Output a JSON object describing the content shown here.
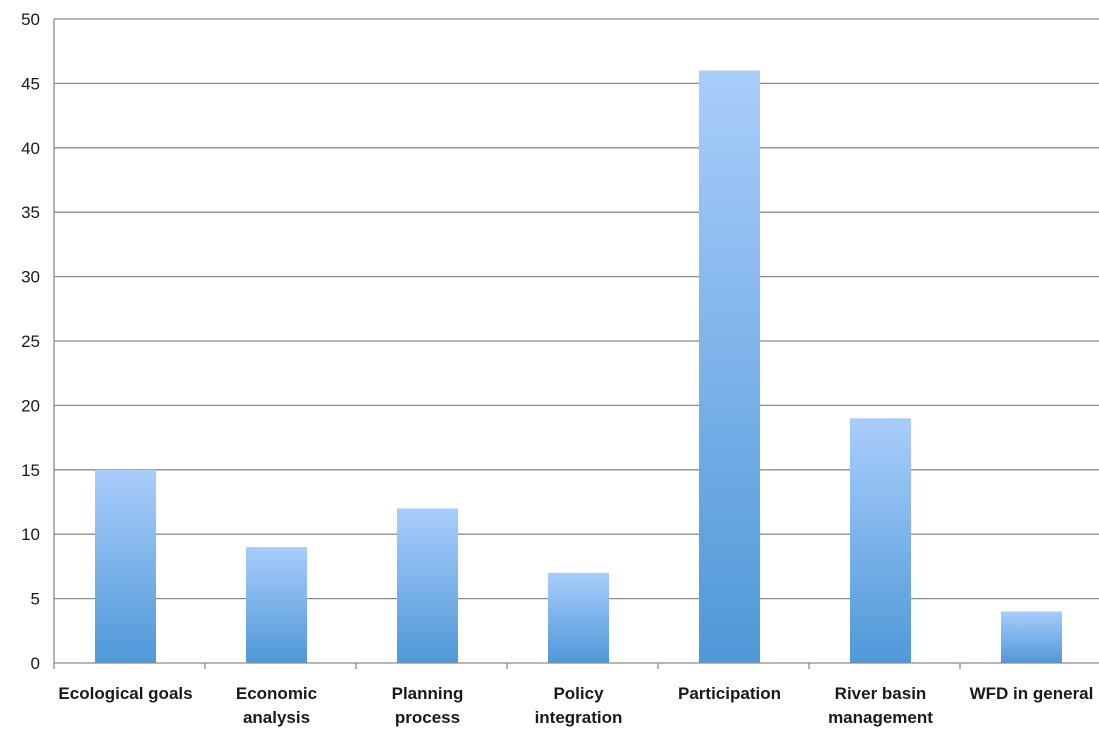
{
  "chart_data": {
    "type": "bar",
    "categories": [
      [
        "Ecological goals"
      ],
      [
        "Economic",
        "analysis"
      ],
      [
        "Planning",
        "process"
      ],
      [
        "Policy",
        "integration"
      ],
      [
        "Participation"
      ],
      [
        "River basin",
        "management"
      ],
      [
        "WFD in general"
      ]
    ],
    "values": [
      15,
      9,
      12,
      7,
      46,
      19,
      4
    ],
    "title": "",
    "xlabel": "",
    "ylabel": "",
    "ylim": [
      0,
      50
    ],
    "yticks": [
      "0",
      "5",
      "10",
      "15",
      "20",
      "25",
      "30",
      "35",
      "40",
      "45",
      "50"
    ],
    "grid": true,
    "legend": "none",
    "colors": {
      "bar_top": "#a9cdfb",
      "bar_bottom": "#4f98d8",
      "grid": "#8c8c8c",
      "axis": "#8c8c8c"
    }
  }
}
